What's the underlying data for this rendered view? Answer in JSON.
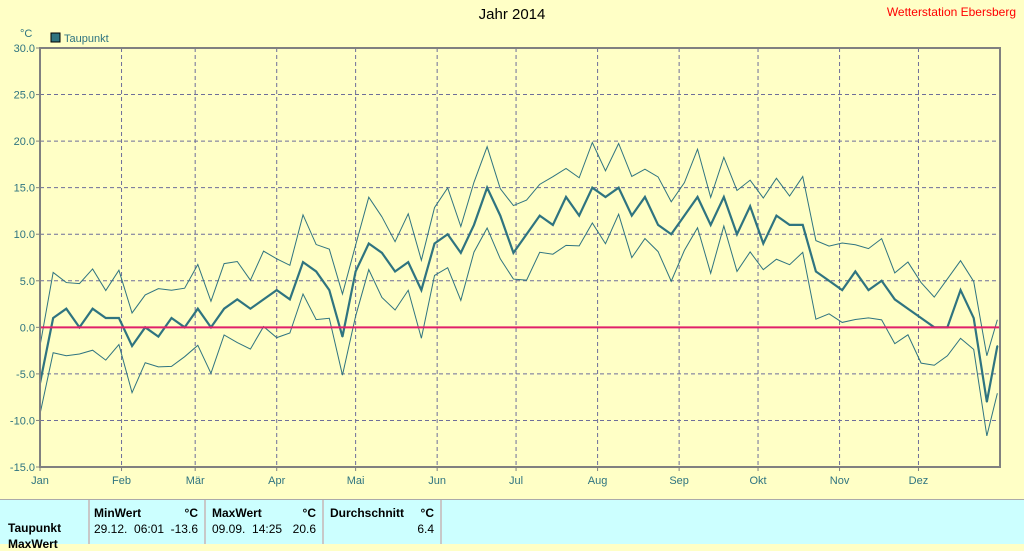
{
  "title": "Jahr 2014",
  "station": "Wetterstation Ebersberg",
  "chart_data": {
    "type": "line",
    "title": "Jahr 2014",
    "ylabel": "°C",
    "ylim": [
      -15,
      30
    ],
    "yticks": [
      "30.0",
      "25.0",
      "20.0",
      "15.0",
      "10.0",
      "5.0",
      "0.0",
      "-5.0",
      "-10.0",
      "-15.0"
    ],
    "ytick_values": [
      30,
      25,
      20,
      15,
      10,
      5,
      0,
      -5,
      -10,
      -15
    ],
    "months": [
      "Jan",
      "Feb",
      "Mär",
      "Apr",
      "Mai",
      "Jun",
      "Jul",
      "Aug",
      "Sep",
      "Okt",
      "Nov",
      "Dez"
    ],
    "month_start_days": [
      0,
      31,
      59,
      90,
      120,
      151,
      181,
      212,
      243,
      273,
      304,
      334
    ],
    "days_in_year": 365,
    "legend": "Taupunkt",
    "legend_placement": "top-left",
    "grid": true,
    "reference_line": 0,
    "x_step_days": 5,
    "series": [
      {
        "name": "Taupunkt",
        "values": [
          -6,
          1,
          2,
          0,
          2,
          1,
          1,
          -2,
          0,
          -1,
          1,
          0,
          2,
          0,
          2,
          3,
          2,
          3,
          4,
          3,
          7,
          6,
          4,
          -1,
          6,
          9,
          8,
          6,
          7,
          4,
          9,
          10,
          8,
          11,
          15,
          12,
          8,
          10,
          12,
          11,
          14,
          12,
          15,
          14,
          15,
          12,
          14,
          11,
          10,
          12,
          14,
          11,
          14,
          10,
          13,
          9,
          12,
          11,
          11,
          6,
          5,
          4,
          6,
          4,
          5,
          3,
          2,
          1,
          0,
          0,
          4,
          1,
          -8,
          -2
        ]
      }
    ],
    "band_offset": 4,
    "colors": {
      "series": "#2f7480",
      "zero": "#e0206a",
      "grid": "#6e6e9a",
      "axis": "#808080",
      "text": "#2f7480"
    }
  },
  "table": {
    "row_label": "Taupunkt",
    "row2_label": "MaxWert",
    "min_header": "MinWert",
    "min_unit": "°C",
    "min_time": "29.12.  06:01",
    "min_value": "-13.6",
    "max_header": "MaxWert",
    "max_unit": "°C",
    "max_time": "09.09.  14:25",
    "max_value": "20.6",
    "avg_header": "Durchschnitt",
    "avg_unit": "°C",
    "avg_value": "6.4"
  }
}
